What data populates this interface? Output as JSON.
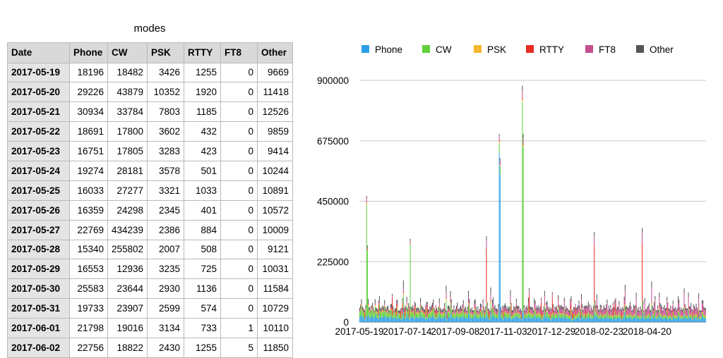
{
  "table": {
    "title": "modes",
    "headers": [
      "Date",
      "Phone",
      "CW",
      "PSK",
      "RTTY",
      "FT8",
      "Other"
    ],
    "rows": [
      [
        "2017-05-19",
        "18196",
        "18482",
        "3426",
        "1255",
        "0",
        "9669"
      ],
      [
        "2017-05-20",
        "29226",
        "43879",
        "10352",
        "1920",
        "0",
        "11418"
      ],
      [
        "2017-05-21",
        "30934",
        "33784",
        "7803",
        "1185",
        "0",
        "12526"
      ],
      [
        "2017-05-22",
        "18691",
        "17800",
        "3602",
        "432",
        "0",
        "9859"
      ],
      [
        "2017-05-23",
        "16751",
        "17805",
        "3283",
        "423",
        "0",
        "9414"
      ],
      [
        "2017-05-24",
        "19274",
        "28181",
        "3578",
        "501",
        "0",
        "10244"
      ],
      [
        "2017-05-25",
        "16033",
        "27277",
        "3321",
        "1033",
        "0",
        "10891"
      ],
      [
        "2017-05-26",
        "16359",
        "24298",
        "2345",
        "401",
        "0",
        "10572"
      ],
      [
        "2017-05-27",
        "22769",
        "434239",
        "2386",
        "884",
        "0",
        "10009"
      ],
      [
        "2017-05-28",
        "15340",
        "255802",
        "2007",
        "508",
        "0",
        "9121"
      ],
      [
        "2017-05-29",
        "16553",
        "12936",
        "3235",
        "725",
        "0",
        "10031"
      ],
      [
        "2017-05-30",
        "25583",
        "23644",
        "2930",
        "1136",
        "0",
        "11584"
      ],
      [
        "2017-05-31",
        "19733",
        "23907",
        "2599",
        "574",
        "0",
        "10729"
      ],
      [
        "2017-06-01",
        "21798",
        "19016",
        "3134",
        "733",
        "1",
        "10110"
      ],
      [
        "2017-06-02",
        "22756",
        "18822",
        "2430",
        "1255",
        "5",
        "11850"
      ]
    ]
  },
  "chart_data": {
    "type": "bar",
    "stacked": true,
    "legend": "top",
    "grid": true,
    "ylim": [
      0,
      900000
    ],
    "yticks": [
      0,
      225000,
      450000,
      675000,
      900000
    ],
    "xticks": [
      "2017-05-19",
      "2017-07-14",
      "2017-09-08",
      "2017-11-03",
      "2017-12-29",
      "2018-02-23",
      "2018-04-20"
    ],
    "series": [
      {
        "name": "Phone",
        "color": "#2d9fe8"
      },
      {
        "name": "CW",
        "color": "#5fd13c"
      },
      {
        "name": "PSK",
        "color": "#f5b82e"
      },
      {
        "name": "RTTY",
        "color": "#ea2d22"
      },
      {
        "name": "FT8",
        "color": "#c44f91"
      },
      {
        "name": "Other",
        "color": "#555555"
      }
    ],
    "daily_totals_approx": {
      "baseline_range": [
        40000,
        70000
      ],
      "spikes": [
        {
          "date": "2017-05-27",
          "total": 470000
        },
        {
          "date": "2017-05-28",
          "total": 285000
        },
        {
          "date": "2017-06-26",
          "total": 105000
        },
        {
          "date": "2017-07-17",
          "total": 310000
        },
        {
          "date": "2017-10-14",
          "total": 320000
        },
        {
          "date": "2017-10-29",
          "total": 700000
        },
        {
          "date": "2017-10-30",
          "total": 610000
        },
        {
          "date": "2017-11-25",
          "total": 880000
        },
        {
          "date": "2017-11-26",
          "total": 700000
        },
        {
          "date": "2018-02-17",
          "total": 335000
        },
        {
          "date": "2018-04-14",
          "total": 350000
        }
      ]
    }
  }
}
